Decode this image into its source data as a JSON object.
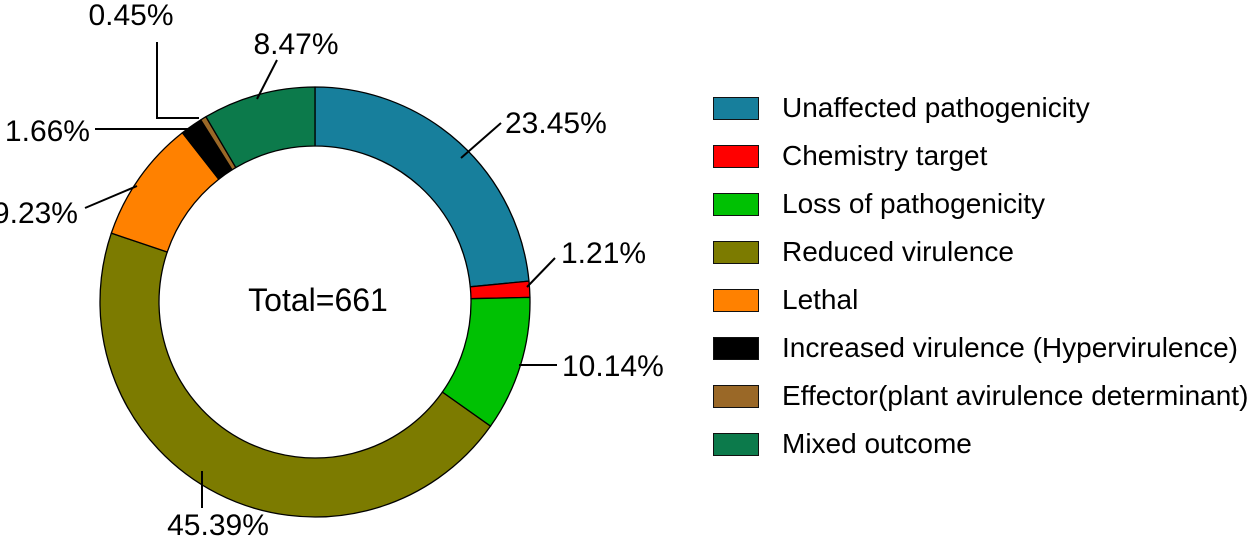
{
  "chart_data": {
    "type": "pie",
    "subtype": "donut",
    "center_label": "Total=661",
    "total": 661,
    "start_angle_deg": 0,
    "direction": "clockwise",
    "legend_position": "right",
    "background_color": "#ffffff",
    "slices": [
      {
        "label": "Unaffected pathogenicity",
        "value": 23.45,
        "pct_label": "23.45%",
        "color": "#177F9C"
      },
      {
        "label": "Chemistry target",
        "value": 1.21,
        "pct_label": "1.21%",
        "color": "#FF0000"
      },
      {
        "label": "Loss of pathogenicity",
        "value": 10.14,
        "pct_label": "10.14%",
        "color": "#00C103"
      },
      {
        "label": "Reduced virulence",
        "value": 45.39,
        "pct_label": "45.39%",
        "color": "#7C7B00"
      },
      {
        "label": "Lethal",
        "value": 9.23,
        "pct_label": "9.23%",
        "color": "#FF8100"
      },
      {
        "label": "Increased virulence (Hypervirulence)",
        "value": 1.66,
        "pct_label": "1.66%",
        "color": "#000000"
      },
      {
        "label": "Effector(plant avirulence determinant)",
        "value": 0.45,
        "pct_label": "0.45%",
        "color": "#9A6827"
      },
      {
        "label": "Mixed outcome",
        "value": 8.47,
        "pct_label": "8.47%",
        "color": "#0C7A4B"
      }
    ]
  }
}
